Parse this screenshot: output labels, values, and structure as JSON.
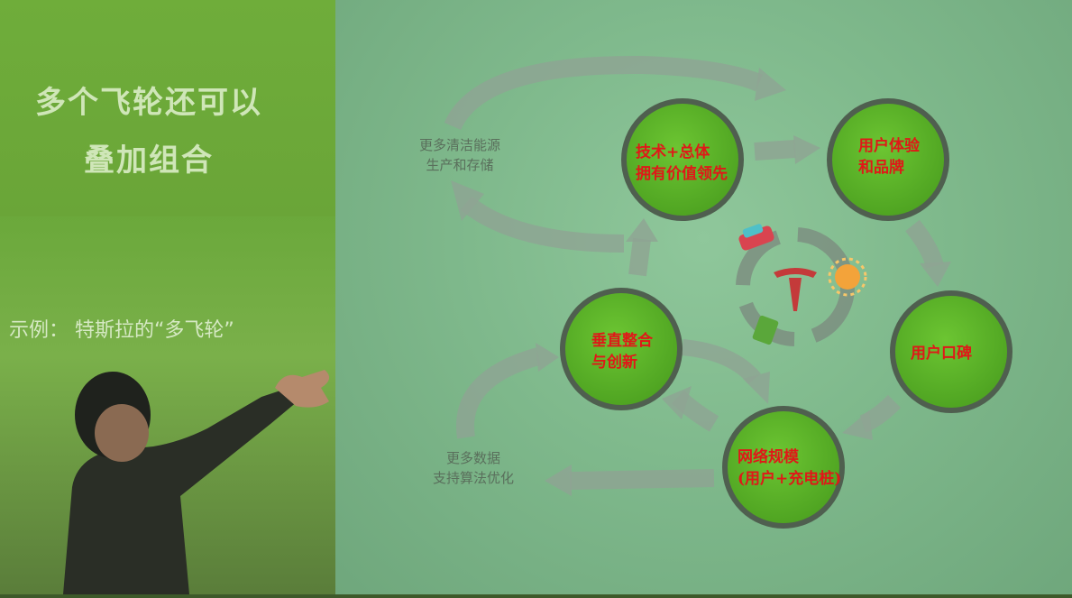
{
  "left": {
    "title_line1": "多个飞轮还可以",
    "title_line2": "叠加组合",
    "example": "示例： 特斯拉的“多飞轮”"
  },
  "diagram": {
    "node_tech_line1": "技术+总体",
    "node_tech_line2": "拥有价值领先",
    "node_experience_line1": "用户体验",
    "node_experience_line2": "和品牌",
    "node_wordofmouth": "用户口碑",
    "node_network_line1": "网络规模",
    "node_network_line2": "(用户+充电桩)",
    "node_vertical_line1": "垂直整合",
    "node_vertical_line2": "与创新",
    "side_energy_line1": "更多清洁能源",
    "side_energy_line2": "生产和存储",
    "side_data_line1": "更多数据",
    "side_data_line2": "支持算法优化",
    "center_icon": "tesla-logo-icon"
  },
  "colors": {
    "node_green": "#5fb62a",
    "node_ring": "#4f5f4f",
    "label_red": "#e01818",
    "arrow_gray": "#8fa493"
  }
}
